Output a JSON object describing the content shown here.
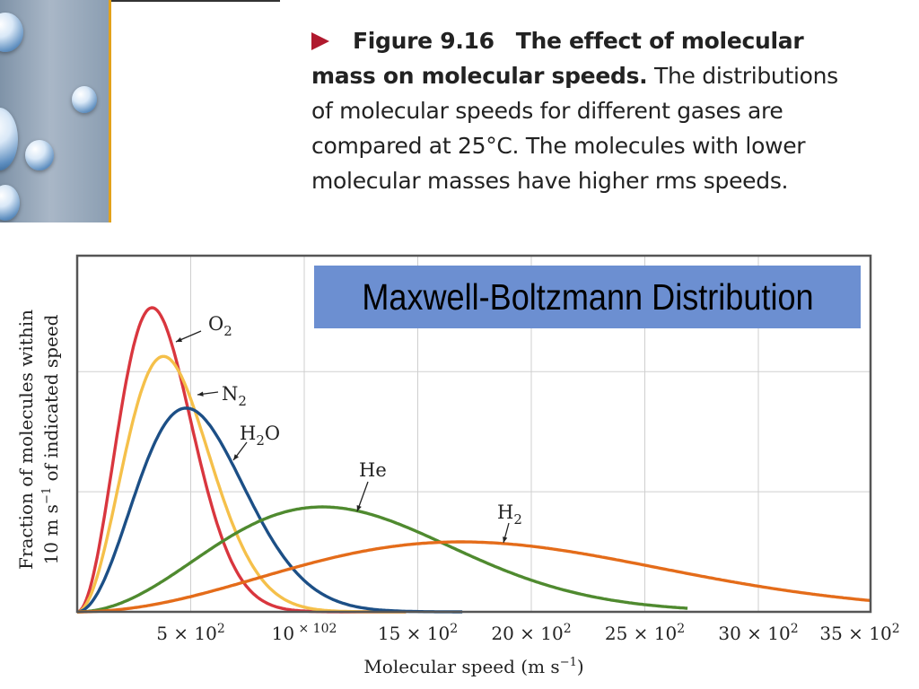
{
  "caption": {
    "figure_label": "Figure 9.16",
    "title": "The effect of molecular mass on molecular speeds.",
    "body": "The distributions of molecular speeds for different gases are compared at 25°C. The molecules with lower molecular masses have higher rms speeds."
  },
  "banner": {
    "text": "Maxwell-Boltzmann Distribution"
  },
  "colors": {
    "O2": "#d9363e",
    "N2": "#f5c04a",
    "H2O": "#1c4f86",
    "He": "#4f8a2f",
    "H2": "#e46c1a",
    "banner": "#6c8fd1",
    "grid": "#cfcfcf",
    "frame": "#555555"
  },
  "chart_data": {
    "type": "line",
    "title": "",
    "xlabel": "Molecular speed (m s−1)",
    "ylabel": "Fraction of molecules within 10 m s−1 of indicated speed",
    "xlim": [
      0,
      3500
    ],
    "ylim": [
      0,
      1
    ],
    "grid": true,
    "x_ticks": [
      {
        "value": 500,
        "label": "5 × 102"
      },
      {
        "value": 1000,
        "label": "10 × 102"
      },
      {
        "value": 1500,
        "label": "15 × 102"
      },
      {
        "value": 2000,
        "label": "20 × 102"
      },
      {
        "value": 2500,
        "label": "25 × 102"
      },
      {
        "value": 3000,
        "label": "30 × 102"
      },
      {
        "value": 3500,
        "label": "35 × 102"
      }
    ],
    "series": [
      {
        "name": "O2",
        "color": "#d9363e",
        "peak_speed": 330,
        "peak_value": 1.0,
        "x_end": 1450
      },
      {
        "name": "N2",
        "color": "#f5c04a",
        "peak_speed": 380,
        "peak_value": 0.84,
        "x_end": 1450
      },
      {
        "name": "H2O",
        "color": "#1c4f86",
        "peak_speed": 480,
        "peak_value": 0.67,
        "x_end": 1700
      },
      {
        "name": "He",
        "color": "#4f8a2f",
        "peak_speed": 1080,
        "peak_value": 0.345,
        "x_end": 2690
      },
      {
        "name": "H2",
        "color": "#e46c1a",
        "peak_speed": 1690,
        "peak_value": 0.23,
        "x_end": 3500
      }
    ],
    "annotations": [
      {
        "series": "O2",
        "sub": "2",
        "base": "O"
      },
      {
        "series": "N2",
        "sub": "2",
        "base": "N"
      },
      {
        "series": "H2O",
        "base": "H",
        "sub": "2",
        "tail": "O"
      },
      {
        "series": "He",
        "base": "He",
        "sub": ""
      },
      {
        "series": "H2",
        "base": "H",
        "sub": "2"
      }
    ]
  }
}
